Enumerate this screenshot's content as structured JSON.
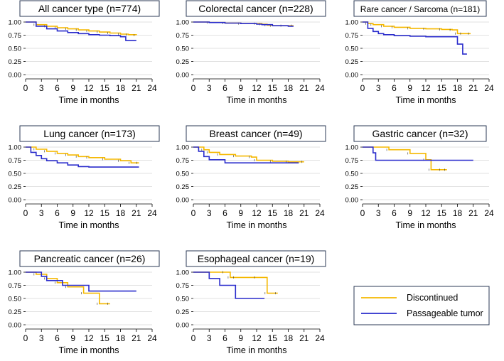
{
  "colors": {
    "discontinued": "#f5b800",
    "passageable": "#2a2ccc",
    "grid": "#d9d9d9",
    "frame": "#2b3a55"
  },
  "legend": {
    "items": [
      "Discontinued",
      "Passageable tumor"
    ]
  },
  "chart_data": [
    {
      "type": "line",
      "title": "All cancer type (n=774)",
      "xlabel": "Time in months",
      "ylabel": "",
      "xlim": [
        0,
        24
      ],
      "ylim": [
        0,
        1
      ],
      "xticks": [
        "0",
        "3",
        "6",
        "9",
        "12",
        "15",
        "18",
        "21",
        "24"
      ],
      "yticks": [
        "0.00",
        "0.25",
        "0.50",
        "0.75",
        "1.00"
      ],
      "series": [
        {
          "name": "Discontinued",
          "x": [
            0,
            2,
            4,
            6,
            8,
            10,
            12,
            14,
            16,
            18,
            19.5,
            21
          ],
          "y": [
            1,
            0.95,
            0.92,
            0.89,
            0.87,
            0.85,
            0.83,
            0.81,
            0.79,
            0.77,
            0.76,
            0.75
          ]
        },
        {
          "name": "Passageable tumor",
          "x": [
            0,
            2,
            4,
            6,
            8,
            10,
            12,
            14,
            16,
            18,
            19,
            21
          ],
          "y": [
            1,
            0.92,
            0.87,
            0.83,
            0.8,
            0.78,
            0.76,
            0.75,
            0.74,
            0.72,
            0.65,
            0.65
          ]
        }
      ]
    },
    {
      "type": "line",
      "title": "Colorectal cancer (n=228)",
      "xlabel": "Time in months",
      "ylabel": "",
      "xlim": [
        0,
        24
      ],
      "ylim": [
        0,
        1
      ],
      "xticks": [
        "0",
        "3",
        "6",
        "9",
        "12",
        "15",
        "18",
        "21",
        "24"
      ],
      "yticks": [
        "0.00",
        "0.25",
        "0.50",
        "0.75",
        "1.00"
      ],
      "series": [
        {
          "name": "Discontinued",
          "x": [
            0,
            3,
            6,
            9,
            12,
            13,
            14,
            15,
            17,
            19
          ],
          "y": [
            1,
            0.99,
            0.98,
            0.97,
            0.97,
            0.96,
            0.94,
            0.93,
            0.93,
            0.93
          ]
        },
        {
          "name": "Passageable tumor",
          "x": [
            0,
            3,
            6,
            9,
            12,
            13,
            15,
            18,
            19
          ],
          "y": [
            1,
            0.99,
            0.98,
            0.97,
            0.96,
            0.95,
            0.93,
            0.92,
            0.92
          ]
        }
      ]
    },
    {
      "type": "line",
      "title": "Rare cancer / Sarcoma (n=181)",
      "xlabel": "Time in months",
      "ylabel": "",
      "xlim": [
        0,
        24
      ],
      "ylim": [
        0,
        1
      ],
      "xticks": [
        "0",
        "3",
        "6",
        "9",
        "12",
        "15",
        "18",
        "21",
        "24"
      ],
      "yticks": [
        "0.00",
        "0.25",
        "0.50",
        "0.75",
        "1.00"
      ],
      "series": [
        {
          "name": "Discontinued",
          "x": [
            0,
            1,
            2,
            4,
            6,
            9,
            12,
            15,
            17,
            18,
            19,
            20.5
          ],
          "y": [
            1,
            0.97,
            0.95,
            0.92,
            0.9,
            0.88,
            0.87,
            0.86,
            0.85,
            0.78,
            0.78,
            0.78
          ]
        },
        {
          "name": "Passageable tumor",
          "x": [
            0,
            1,
            2,
            3,
            4,
            6,
            9,
            12,
            15,
            17,
            18,
            19,
            19.8
          ],
          "y": [
            1,
            0.88,
            0.82,
            0.78,
            0.76,
            0.74,
            0.73,
            0.72,
            0.72,
            0.72,
            0.58,
            0.39,
            0.39
          ]
        }
      ]
    },
    {
      "type": "line",
      "title": "Lung cancer (n=173)",
      "xlabel": "Time in months",
      "ylabel": "",
      "xlim": [
        0,
        24
      ],
      "ylim": [
        0,
        1
      ],
      "xticks": [
        "0",
        "3",
        "6",
        "9",
        "12",
        "15",
        "18",
        "21",
        "24"
      ],
      "yticks": [
        "0.00",
        "0.25",
        "0.50",
        "0.75",
        "1.00"
      ],
      "series": [
        {
          "name": "Discontinued",
          "x": [
            0,
            2,
            4,
            6,
            8,
            10,
            12,
            15,
            18,
            20,
            21.5
          ],
          "y": [
            1,
            0.96,
            0.92,
            0.88,
            0.85,
            0.82,
            0.8,
            0.77,
            0.74,
            0.7,
            0.7
          ]
        },
        {
          "name": "Passageable tumor",
          "x": [
            0,
            1,
            2,
            3,
            4,
            6,
            8,
            10,
            12,
            15,
            18,
            21.5
          ],
          "y": [
            1,
            0.9,
            0.84,
            0.78,
            0.74,
            0.7,
            0.66,
            0.63,
            0.62,
            0.62,
            0.62,
            0.62
          ]
        }
      ]
    },
    {
      "type": "line",
      "title": "Breast cancer (n=49)",
      "xlabel": "Time in months",
      "ylabel": "",
      "xlim": [
        0,
        24
      ],
      "ylim": [
        0,
        1
      ],
      "xticks": [
        "0",
        "3",
        "6",
        "9",
        "12",
        "15",
        "18",
        "21",
        "24"
      ],
      "yticks": [
        "0.00",
        "0.25",
        "0.50",
        "0.75",
        "1.00"
      ],
      "series": [
        {
          "name": "Discontinued",
          "x": [
            0,
            2,
            3,
            5,
            8,
            11,
            12,
            15,
            18,
            21
          ],
          "y": [
            1,
            0.95,
            0.9,
            0.86,
            0.83,
            0.81,
            0.75,
            0.73,
            0.72,
            0.72
          ]
        },
        {
          "name": "Passageable tumor",
          "x": [
            0,
            1,
            2,
            3,
            6,
            9,
            12,
            15,
            18,
            20
          ],
          "y": [
            1,
            0.92,
            0.82,
            0.76,
            0.7,
            0.7,
            0.7,
            0.7,
            0.7,
            0.7
          ]
        }
      ]
    },
    {
      "type": "line",
      "title": "Gastric cancer (n=32)",
      "xlabel": "Time in months",
      "ylabel": "",
      "xlim": [
        0,
        24
      ],
      "ylim": [
        0,
        1
      ],
      "xticks": [
        "0",
        "3",
        "6",
        "9",
        "12",
        "15",
        "18",
        "21",
        "24"
      ],
      "yticks": [
        "0.00",
        "0.25",
        "0.50",
        "0.75",
        "1.00"
      ],
      "series": [
        {
          "name": "Discontinued",
          "x": [
            0,
            5,
            9,
            12,
            13,
            15,
            16
          ],
          "y": [
            1,
            0.95,
            0.88,
            0.76,
            0.57,
            0.57,
            0.57
          ]
        },
        {
          "name": "Passageable tumor",
          "x": [
            0,
            2,
            2.5,
            3,
            6,
            9,
            12,
            15,
            18,
            21
          ],
          "y": [
            1,
            0.89,
            0.75,
            0.75,
            0.75,
            0.75,
            0.75,
            0.75,
            0.75,
            0.75
          ]
        }
      ]
    },
    {
      "type": "line",
      "title": "Pancreatic cancer (n=26)",
      "xlabel": "Time in months",
      "ylabel": "",
      "xlim": [
        0,
        24
      ],
      "ylim": [
        0,
        1
      ],
      "xticks": [
        "0",
        "3",
        "6",
        "9",
        "12",
        "15",
        "18",
        "21",
        "24"
      ],
      "yticks": [
        "0.00",
        "0.25",
        "0.50",
        "0.75",
        "1.00"
      ],
      "series": [
        {
          "name": "Discontinued",
          "x": [
            0,
            2,
            4,
            6,
            8,
            11,
            14,
            16
          ],
          "y": [
            1,
            0.96,
            0.88,
            0.8,
            0.72,
            0.6,
            0.4,
            0.4
          ]
        },
        {
          "name": "Passageable tumor",
          "x": [
            0,
            3,
            4,
            7,
            12,
            15,
            18,
            21
          ],
          "y": [
            1,
            0.92,
            0.84,
            0.75,
            0.64,
            0.64,
            0.64,
            0.64
          ]
        }
      ]
    },
    {
      "type": "line",
      "title": "Esophageal cancer (n=19)",
      "xlabel": "Time in months",
      "ylabel": "",
      "xlim": [
        0,
        24
      ],
      "ylim": [
        0,
        1
      ],
      "xticks": [
        "0",
        "3",
        "6",
        "9",
        "12",
        "15",
        "18",
        "21",
        "24"
      ],
      "yticks": [
        "0.00",
        "0.25",
        "0.50",
        "0.75",
        "1.00"
      ],
      "series": [
        {
          "name": "Discontinued",
          "x": [
            0,
            6,
            7,
            8,
            12,
            14,
            16
          ],
          "y": [
            1,
            1,
            0.9,
            0.9,
            0.9,
            0.6,
            0.6
          ]
        },
        {
          "name": "Passageable tumor",
          "x": [
            0,
            3,
            5,
            8,
            10,
            12,
            13.5
          ],
          "y": [
            1,
            0.88,
            0.75,
            0.5,
            0.5,
            0.5,
            0.5
          ]
        }
      ]
    }
  ]
}
